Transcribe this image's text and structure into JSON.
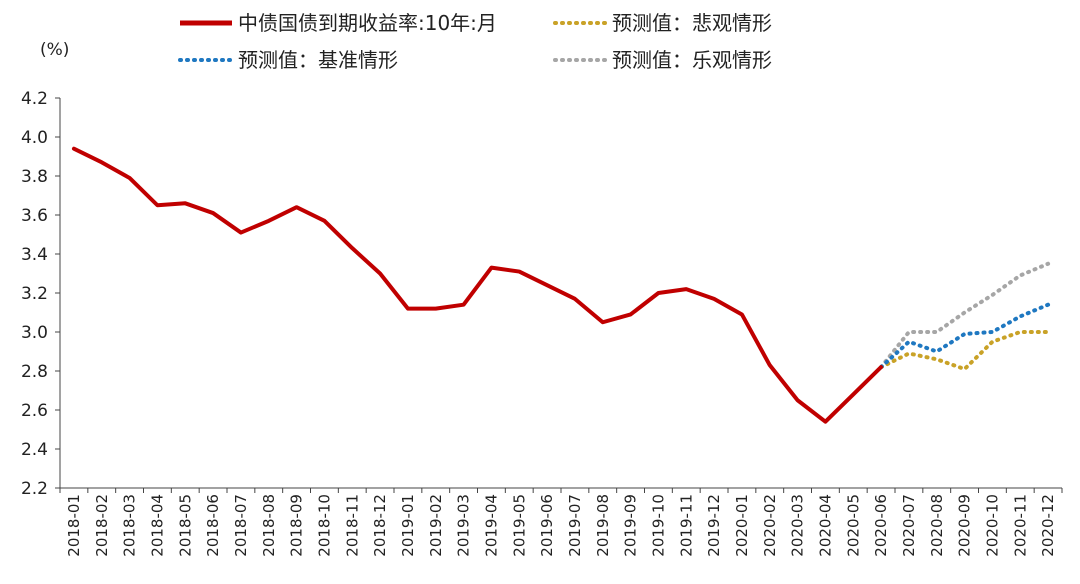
{
  "chart_data": {
    "type": "line",
    "unit_label": "(%)",
    "ylim": [
      2.2,
      4.2
    ],
    "yticks": [
      "2.2",
      "2.4",
      "2.6",
      "2.8",
      "3.0",
      "3.2",
      "3.4",
      "3.6",
      "3.8",
      "4.0",
      "4.2"
    ],
    "grid": false,
    "legend_position": "top",
    "categories": [
      "2018-01",
      "2018-02",
      "2018-03",
      "2018-04",
      "2018-05",
      "2018-06",
      "2018-07",
      "2018-08",
      "2018-09",
      "2018-10",
      "2018-11",
      "2018-12",
      "2019-01",
      "2019-02",
      "2019-03",
      "2019-04",
      "2019-05",
      "2019-06",
      "2019-07",
      "2019-08",
      "2019-09",
      "2019-10",
      "2019-11",
      "2019-12",
      "2020-01",
      "2020-02",
      "2020-03",
      "2020-04",
      "2020-05",
      "2020-06",
      "2020-07",
      "2020-08",
      "2020-09",
      "2020-10",
      "2020-11",
      "2020-12"
    ],
    "series": [
      {
        "name": "中债国债到期收益率:10年:月",
        "color": "#c00000",
        "style": "solid",
        "x": [
          "2018-01",
          "2018-02",
          "2018-03",
          "2018-04",
          "2018-05",
          "2018-06",
          "2018-07",
          "2018-08",
          "2018-09",
          "2018-10",
          "2018-11",
          "2018-12",
          "2019-01",
          "2019-02",
          "2019-03",
          "2019-04",
          "2019-05",
          "2019-06",
          "2019-07",
          "2019-08",
          "2019-09",
          "2019-10",
          "2019-11",
          "2019-12",
          "2020-01",
          "2020-02",
          "2020-03",
          "2020-04",
          "2020-05",
          "2020-06"
        ],
        "values": [
          3.94,
          3.87,
          3.79,
          3.65,
          3.66,
          3.61,
          3.51,
          3.57,
          3.64,
          3.57,
          3.43,
          3.3,
          3.12,
          3.12,
          3.14,
          3.33,
          3.31,
          3.24,
          3.17,
          3.05,
          3.09,
          3.2,
          3.22,
          3.17,
          3.09,
          2.83,
          2.65,
          2.54,
          2.68,
          2.82
        ]
      },
      {
        "name": "预测值：悲观情形",
        "color": "#c9a227",
        "style": "dotted",
        "x": [
          "2020-06",
          "2020-07",
          "2020-08",
          "2020-09",
          "2020-10",
          "2020-11",
          "2020-12"
        ],
        "values": [
          2.82,
          2.89,
          2.86,
          2.81,
          2.95,
          3.0,
          3.0
        ]
      },
      {
        "name": "预测值：基准情形",
        "color": "#1f78c1",
        "style": "dotted",
        "x": [
          "2020-06",
          "2020-07",
          "2020-08",
          "2020-09",
          "2020-10",
          "2020-11",
          "2020-12"
        ],
        "values": [
          2.82,
          2.95,
          2.9,
          2.99,
          3.0,
          3.08,
          3.14
        ]
      },
      {
        "name": "预测值：乐观情形",
        "color": "#a6a6a6",
        "style": "dotted",
        "x": [
          "2020-06",
          "2020-07",
          "2020-08",
          "2020-09",
          "2020-10",
          "2020-11",
          "2020-12"
        ],
        "values": [
          2.82,
          3.0,
          3.0,
          3.1,
          3.19,
          3.29,
          3.35
        ]
      }
    ]
  }
}
